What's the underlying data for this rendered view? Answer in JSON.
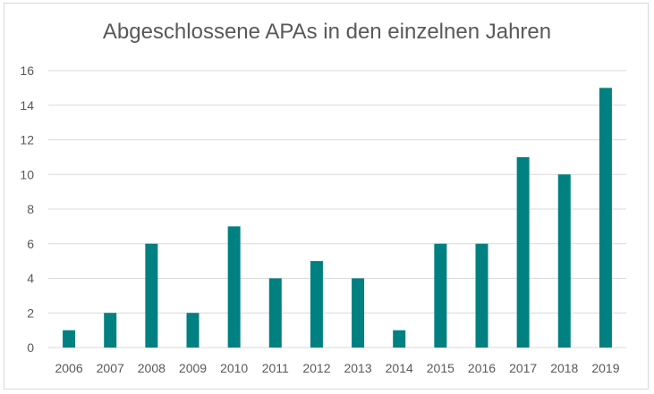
{
  "chart_data": {
    "type": "bar",
    "title": "Abgeschlossene APAs in den einzelnen Jahren",
    "xlabel": "",
    "ylabel": "",
    "categories": [
      "2006",
      "2007",
      "2008",
      "2009",
      "2010",
      "2011",
      "2012",
      "2013",
      "2014",
      "2015",
      "2016",
      "2017",
      "2018",
      "2019"
    ],
    "values": [
      1,
      2,
      6,
      2,
      7,
      4,
      5,
      4,
      1,
      6,
      6,
      11,
      10,
      15
    ],
    "ylim": [
      0,
      16
    ],
    "yticks": [
      0,
      2,
      4,
      6,
      8,
      10,
      12,
      14,
      16
    ],
    "grid": true,
    "legend": "none",
    "bar_color": "#008080"
  }
}
